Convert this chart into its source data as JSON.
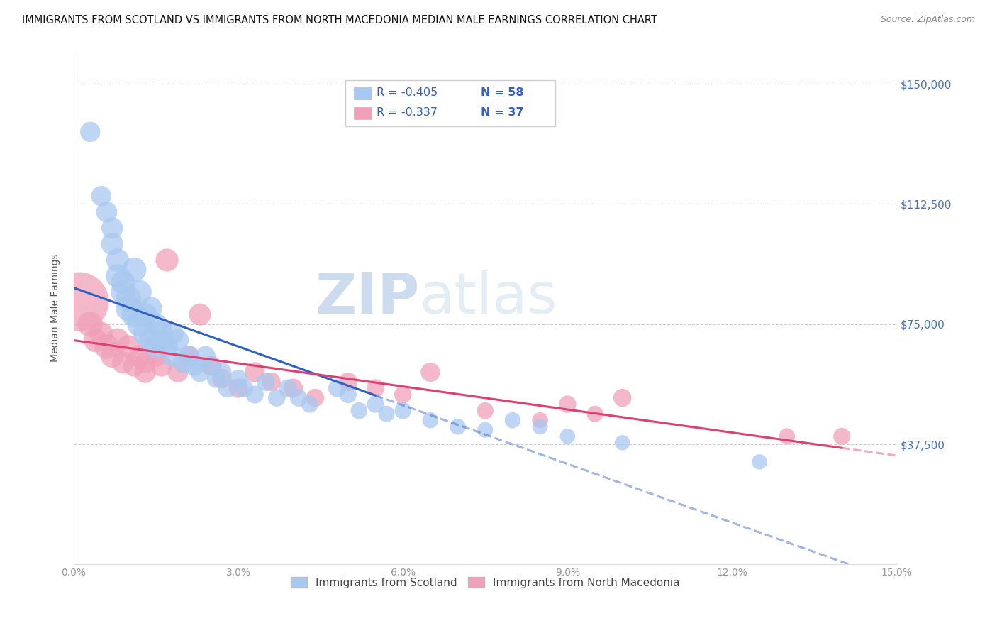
{
  "title": "IMMIGRANTS FROM SCOTLAND VS IMMIGRANTS FROM NORTH MACEDONIA MEDIAN MALE EARNINGS CORRELATION CHART",
  "source": "Source: ZipAtlas.com",
  "ylabel": "Median Male Earnings",
  "y_ticks": [
    0,
    37500,
    75000,
    112500,
    150000
  ],
  "y_tick_labels": [
    "",
    "$37,500",
    "$75,000",
    "$112,500",
    "$150,000"
  ],
  "xlim": [
    0.0,
    0.15
  ],
  "ylim": [
    0,
    160000
  ],
  "legend_r1": "-0.405",
  "legend_n1": "58",
  "legend_r2": "-0.337",
  "legend_n2": "37",
  "color_scotland": "#a8c8f0",
  "color_scotland_line": "#3060c0",
  "color_n_macedonia": "#f0a0b8",
  "color_n_macedonia_line": "#e04070",
  "color_axis_right": "#4472c4",
  "watermark_zip": "ZIP",
  "watermark_atlas": "atlas",
  "scotland_x": [
    0.003,
    0.005,
    0.006,
    0.007,
    0.007,
    0.008,
    0.008,
    0.009,
    0.009,
    0.01,
    0.01,
    0.011,
    0.011,
    0.012,
    0.012,
    0.013,
    0.013,
    0.014,
    0.014,
    0.015,
    0.015,
    0.016,
    0.016,
    0.017,
    0.018,
    0.018,
    0.019,
    0.02,
    0.021,
    0.022,
    0.023,
    0.024,
    0.025,
    0.026,
    0.027,
    0.028,
    0.03,
    0.031,
    0.033,
    0.035,
    0.037,
    0.039,
    0.041,
    0.043,
    0.048,
    0.05,
    0.052,
    0.055,
    0.057,
    0.06,
    0.065,
    0.07,
    0.075,
    0.08,
    0.085,
    0.09,
    0.1,
    0.125
  ],
  "scotland_y": [
    135000,
    115000,
    110000,
    105000,
    100000,
    95000,
    90000,
    88000,
    85000,
    83000,
    80000,
    92000,
    78000,
    85000,
    75000,
    78000,
    72000,
    80000,
    70000,
    75000,
    68000,
    73000,
    70000,
    68000,
    72000,
    65000,
    70000,
    63000,
    65000,
    62000,
    60000,
    65000,
    62000,
    58000,
    60000,
    55000,
    58000,
    55000,
    53000,
    57000,
    52000,
    55000,
    52000,
    50000,
    55000,
    53000,
    48000,
    50000,
    47000,
    48000,
    45000,
    43000,
    42000,
    45000,
    43000,
    40000,
    38000,
    32000
  ],
  "scotland_size": [
    35,
    35,
    38,
    40,
    42,
    45,
    48,
    50,
    52,
    55,
    58,
    52,
    55,
    50,
    53,
    48,
    50,
    45,
    48,
    42,
    45,
    43,
    45,
    40,
    42,
    38,
    40,
    38,
    36,
    35,
    33,
    35,
    32,
    30,
    32,
    30,
    28,
    30,
    27,
    29,
    26,
    28,
    26,
    25,
    27,
    25,
    24,
    25,
    23,
    24,
    22,
    22,
    21,
    22,
    21,
    20,
    20,
    20
  ],
  "n_macedonia_x": [
    0.001,
    0.003,
    0.004,
    0.005,
    0.006,
    0.007,
    0.008,
    0.009,
    0.01,
    0.011,
    0.012,
    0.013,
    0.013,
    0.015,
    0.016,
    0.017,
    0.019,
    0.021,
    0.023,
    0.025,
    0.027,
    0.03,
    0.033,
    0.036,
    0.04,
    0.044,
    0.05,
    0.055,
    0.06,
    0.065,
    0.075,
    0.085,
    0.09,
    0.095,
    0.1,
    0.13,
    0.14
  ],
  "n_macedonia_y": [
    82000,
    75000,
    70000,
    72000,
    68000,
    65000,
    70000,
    63000,
    68000,
    62000,
    65000,
    63000,
    60000,
    65000,
    62000,
    95000,
    60000,
    65000,
    78000,
    62000,
    58000,
    55000,
    60000,
    57000,
    55000,
    52000,
    57000,
    55000,
    53000,
    60000,
    48000,
    45000,
    50000,
    47000,
    52000,
    40000,
    40000
  ],
  "n_macedonia_size": [
    300,
    55,
    50,
    48,
    52,
    45,
    48,
    42,
    45,
    40,
    43,
    38,
    40,
    38,
    40,
    45,
    36,
    38,
    42,
    35,
    33,
    32,
    35,
    30,
    32,
    28,
    30,
    28,
    26,
    32,
    24,
    22,
    26,
    23,
    28,
    22,
    25
  ]
}
